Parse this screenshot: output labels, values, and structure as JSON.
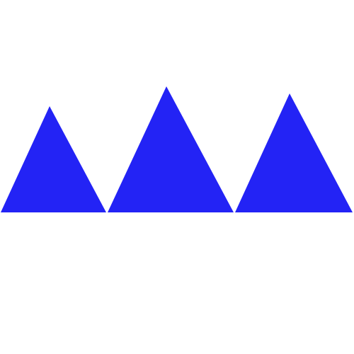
{
  "canvas": {
    "background": "#ffffff"
  },
  "shapes": {
    "count": 3,
    "kind": "triangle",
    "orientation": "upward",
    "color": "#2323f5",
    "items": [
      {
        "name": "triangle-left",
        "color": "#2323f5"
      },
      {
        "name": "triangle-middle",
        "color": "#2323f5"
      },
      {
        "name": "triangle-right",
        "color": "#2323f5"
      }
    ]
  }
}
